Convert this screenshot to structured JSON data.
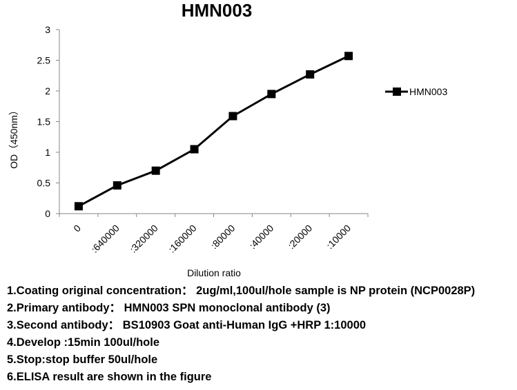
{
  "chart_data": {
    "type": "line",
    "title": "HMN003",
    "xlabel": "Dilution ratio",
    "ylabel": "OD（450nm）",
    "categories": [
      "0",
      ":640000",
      ":320000",
      ":160000",
      ":80000",
      ":40000",
      ":20000",
      ":10000"
    ],
    "series": [
      {
        "name": "HMN003",
        "values": [
          0.12,
          0.46,
          0.7,
          1.05,
          1.59,
          1.95,
          2.27,
          2.57
        ]
      }
    ],
    "ylim": [
      0,
      3
    ],
    "yticks": [
      "0",
      "0.5",
      "1",
      "1.5",
      "2",
      "2.5",
      "3"
    ],
    "grid": false,
    "legend_position": "right",
    "series_color": "#000000",
    "marker": "square"
  },
  "notes": [
    "1.Coating original concentration： 2ug/ml,100ul/hole sample is NP protein (NCP0028P)",
    "2.Primary antibody： HMN003  SPN monoclonal antibody  (3)",
    "3.Second antibody： BS10903  Goat anti-Human IgG +HRP  1:10000",
    "4.Develop :15min  100ul/hole",
    "5.Stop:stop buffer  50ul/hole",
    "6.ELISA result are shown in the figure"
  ]
}
